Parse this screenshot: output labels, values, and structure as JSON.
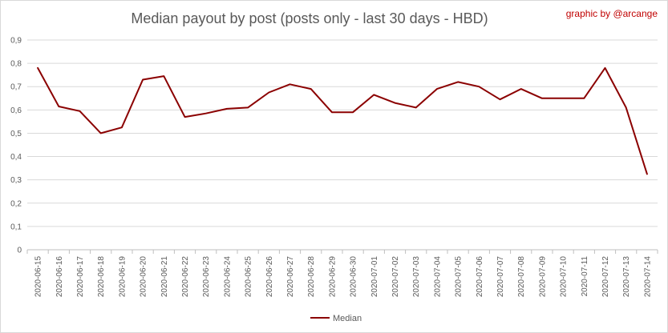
{
  "credit": "graphic by @arcange",
  "chart_data": {
    "type": "line",
    "title": "Median payout by post (posts only - last 30 days - HBD)",
    "xlabel": "",
    "ylabel": "",
    "ylim": [
      0,
      0.9
    ],
    "yticks": [
      "0",
      "0,1",
      "0,2",
      "0,3",
      "0,4",
      "0,5",
      "0,6",
      "0,7",
      "0,8",
      "0,9"
    ],
    "grid": true,
    "legend_position": "bottom",
    "line_color": "#8b0000",
    "x": [
      "2020-06-15",
      "2020-06-16",
      "2020-06-17",
      "2020-06-18",
      "2020-06-19",
      "2020-06-20",
      "2020-06-21",
      "2020-06-22",
      "2020-06-23",
      "2020-06-24",
      "2020-06-25",
      "2020-06-26",
      "2020-06-27",
      "2020-06-28",
      "2020-06-29",
      "2020-06-30",
      "2020-07-01",
      "2020-07-02",
      "2020-07-03",
      "2020-07-04",
      "2020-07-05",
      "2020-07-06",
      "2020-07-07",
      "2020-07-08",
      "2020-07-09",
      "2020-07-10",
      "2020-07-11",
      "2020-07-12",
      "2020-07-13",
      "2020-07-14"
    ],
    "series": [
      {
        "name": "Median",
        "values": [
          0.78,
          0.615,
          0.595,
          0.5,
          0.525,
          0.73,
          0.745,
          0.57,
          0.585,
          0.605,
          0.61,
          0.675,
          0.71,
          0.69,
          0.59,
          0.59,
          0.665,
          0.63,
          0.61,
          0.69,
          0.72,
          0.7,
          0.645,
          0.69,
          0.65,
          0.65,
          0.65,
          0.78,
          0.61,
          0.325
        ]
      }
    ]
  }
}
